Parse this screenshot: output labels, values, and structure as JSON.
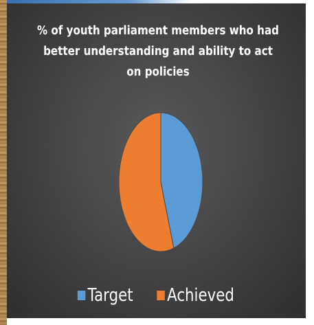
{
  "chart_data": {
    "type": "pie",
    "title": "% of youth parliament members who had better understanding and ability to act on policies",
    "categories": [
      "Target",
      "Achieved"
    ],
    "values": [
      45,
      55
    ],
    "colors": [
      "#5b9bd5",
      "#ed7d31"
    ],
    "legend_position": "bottom"
  }
}
